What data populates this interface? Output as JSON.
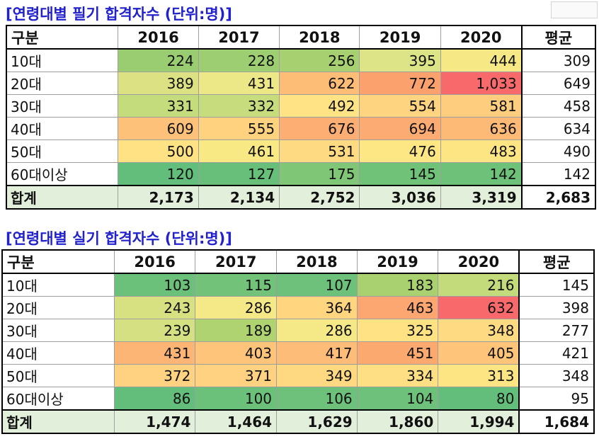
{
  "tables": [
    {
      "title": "[연령대별 필기 합격자수 (단위:명)]",
      "headers": [
        "구분",
        "2016",
        "2017",
        "2018",
        "2019",
        "2020",
        "평균"
      ],
      "rows": [
        {
          "label": "10대",
          "values": [
            "224",
            "228",
            "256",
            "395",
            "444"
          ],
          "colors": [
            "#9acd72",
            "#9dce72",
            "#a7d170",
            "#dde487",
            "#f6e985"
          ],
          "avg": "309"
        },
        {
          "label": "20대",
          "values": [
            "389",
            "431",
            "622",
            "772",
            "1,033"
          ],
          "colors": [
            "#dce283",
            "#ede887",
            "#fdbd77",
            "#fba16e",
            "#f8696b"
          ],
          "avg": "649"
        },
        {
          "label": "30대",
          "values": [
            "331",
            "332",
            "492",
            "554",
            "581"
          ],
          "colors": [
            "#c5dc7d",
            "#c6dc7d",
            "#ffe384",
            "#fed480",
            "#fecd7e"
          ],
          "avg": "458"
        },
        {
          "label": "40대",
          "values": [
            "609",
            "555",
            "676",
            "694",
            "636"
          ],
          "colors": [
            "#fdc17a",
            "#fed27f",
            "#fcae73",
            "#fcab72",
            "#fdba77"
          ],
          "avg": "634"
        },
        {
          "label": "50대",
          "values": [
            "500",
            "461",
            "531",
            "476",
            "483"
          ],
          "colors": [
            "#ffe283",
            "#f8e985",
            "#fedb82",
            "#fde784",
            "#fee583"
          ],
          "avg": "490"
        },
        {
          "label": "60대이상",
          "values": [
            "120",
            "127",
            "175",
            "145",
            "142"
          ],
          "colors": [
            "#63be7b",
            "#67bf7a",
            "#80c677",
            "#70c279",
            "#6ec179"
          ],
          "avg": "142"
        }
      ],
      "total": {
        "label": "합계",
        "values": [
          "2,173",
          "2,134",
          "2,752",
          "3,036",
          "3,319"
        ],
        "avg": "2,683"
      }
    },
    {
      "title": "[연령대별 실기 합격자수 (단위:명)]",
      "headers": [
        "구분",
        "2016",
        "2017",
        "2018",
        "2019",
        "2020",
        "평균"
      ],
      "rows": [
        {
          "label": "10대",
          "values": [
            "103",
            "115",
            "107",
            "183",
            "216"
          ],
          "colors": [
            "#6cc17a",
            "#73c279",
            "#6ec17a",
            "#a9d170",
            "#c4db7b"
          ],
          "avg": "145"
        },
        {
          "label": "20대",
          "values": [
            "243",
            "286",
            "364",
            "463",
            "632"
          ],
          "colors": [
            "#d7e182",
            "#f4e986",
            "#ffd580",
            "#fca672",
            "#f8696b"
          ],
          "avg": "398"
        },
        {
          "label": "30대",
          "values": [
            "239",
            "189",
            "286",
            "325",
            "348"
          ],
          "colors": [
            "#d4e081",
            "#b0d371",
            "#f4e986",
            "#fee283",
            "#fedb82"
          ],
          "avg": "277"
        },
        {
          "label": "40대",
          "values": [
            "431",
            "403",
            "417",
            "451",
            "405"
          ],
          "colors": [
            "#fcb575",
            "#fdc47a",
            "#fdbc77",
            "#fba96f",
            "#fdc47a"
          ],
          "avg": "421"
        },
        {
          "label": "50대",
          "values": [
            "372",
            "371",
            "349",
            "334",
            "313"
          ],
          "colors": [
            "#fed280",
            "#fed280",
            "#fed982",
            "#ffdf83",
            "#fee584"
          ],
          "avg": "348"
        },
        {
          "label": "60대이상",
          "values": [
            "86",
            "100",
            "106",
            "104",
            "80"
          ],
          "colors": [
            "#64be7b",
            "#6bc17a",
            "#6ec17a",
            "#6dc17a",
            "#63be7b"
          ],
          "avg": "95"
        }
      ],
      "total": {
        "label": "합계",
        "values": [
          "1,474",
          "1,464",
          "1,629",
          "1,860",
          "1,994"
        ],
        "avg": "1,684"
      }
    }
  ]
}
